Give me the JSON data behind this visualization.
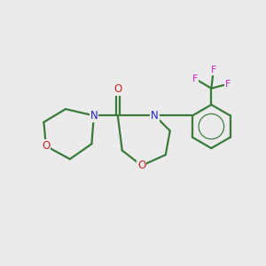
{
  "bg_color": "#ebebeb",
  "bond_color": "#3a7a3a",
  "N_color": "#2222cc",
  "O_color": "#cc2222",
  "F_color": "#cc22cc",
  "line_width": 1.6,
  "fig_size": [
    3.0,
    3.0
  ],
  "dpi": 100,
  "xlim": [
    0,
    12
  ],
  "ylim": [
    0,
    12
  ]
}
